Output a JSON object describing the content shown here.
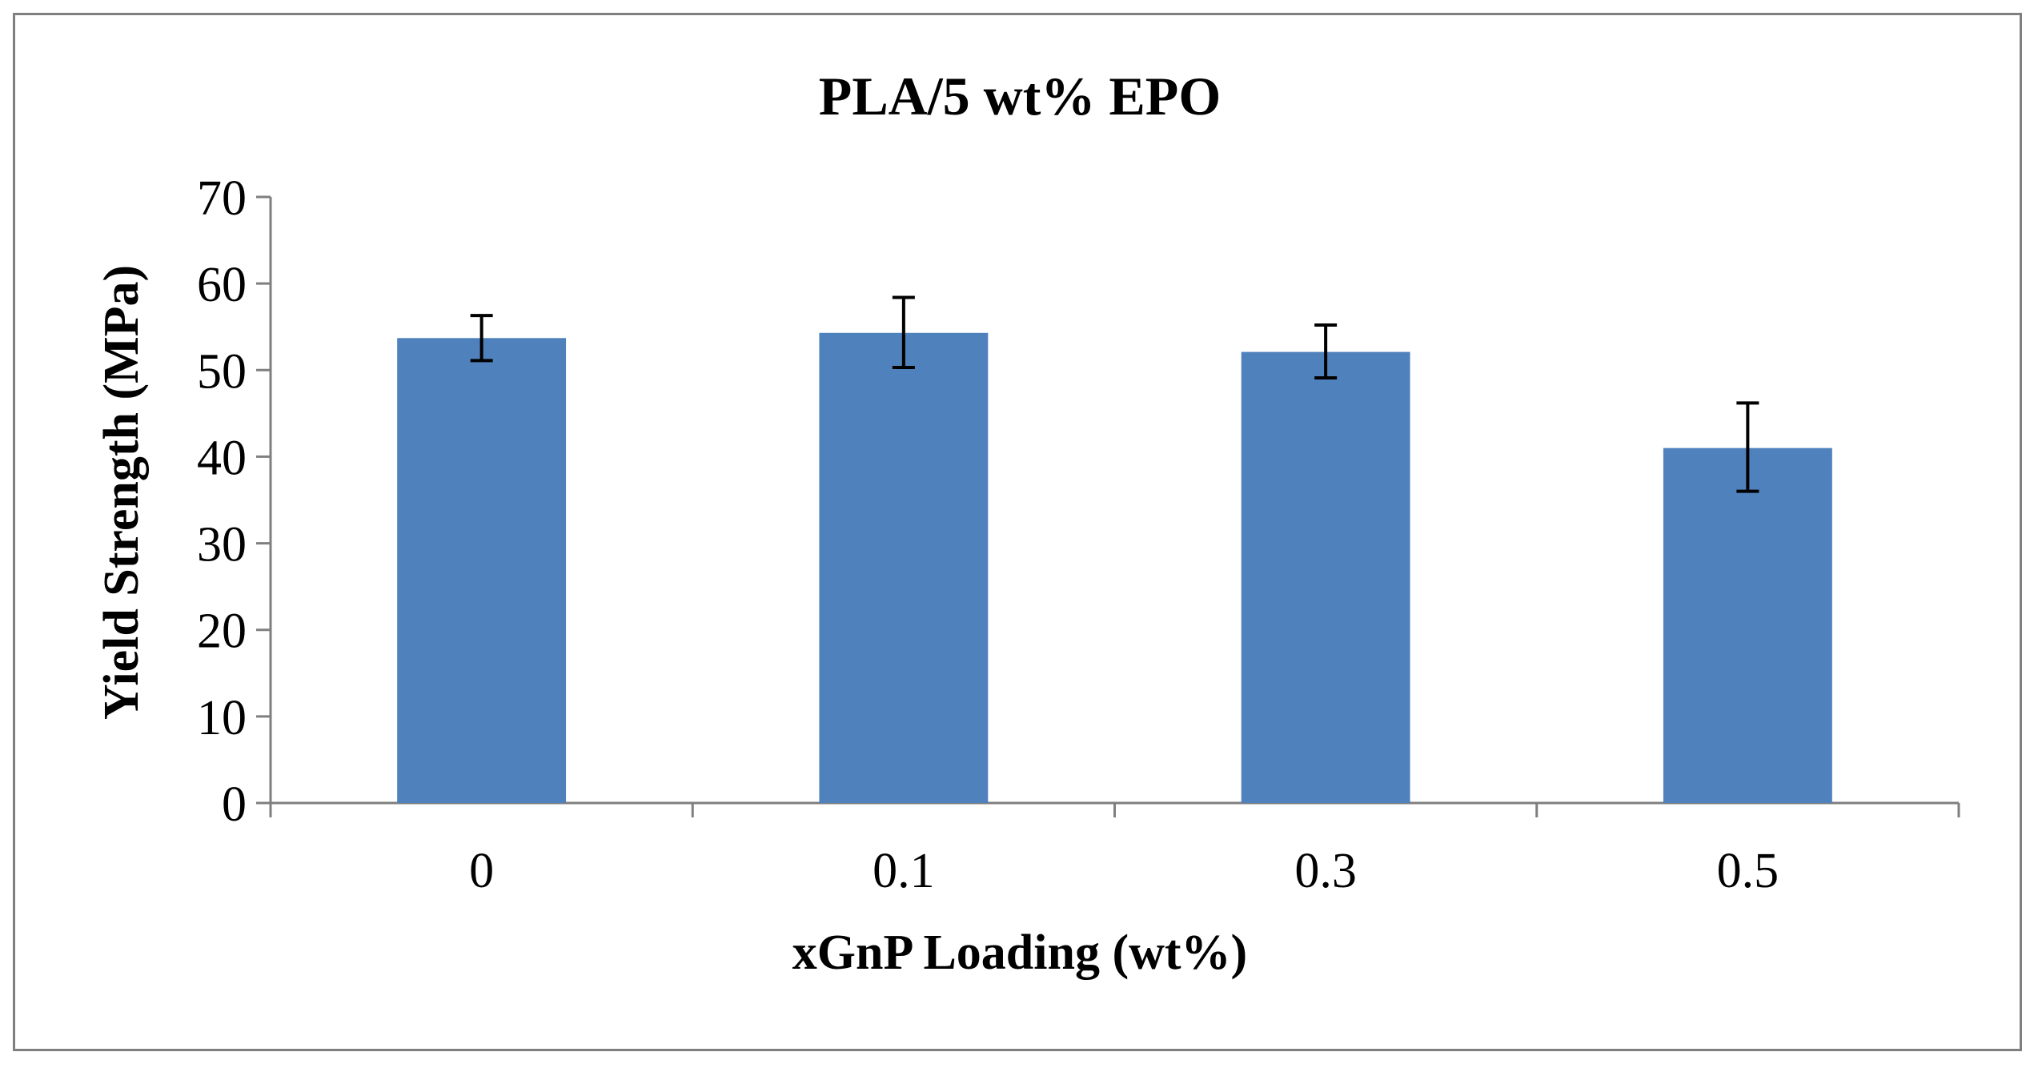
{
  "chart_data": {
    "type": "bar",
    "title": "PLA/5 wt% EPO",
    "xlabel": "xGnP Loading (wt%)",
    "ylabel": "Yield Strength (MPa)",
    "categories": [
      "0",
      "0.1",
      "0.3",
      "0.5"
    ],
    "values": [
      53.7,
      54.3,
      52.1,
      41.0
    ],
    "error_low": [
      51.1,
      50.3,
      49.1,
      36.0
    ],
    "error_high": [
      56.3,
      58.4,
      55.2,
      46.2
    ],
    "ylim": [
      0,
      70
    ],
    "yticks": [
      0,
      10,
      20,
      30,
      40,
      50,
      60,
      70
    ],
    "bar_color": "#4f81bd",
    "axis_color": "#7f7f7f",
    "grid": false
  }
}
